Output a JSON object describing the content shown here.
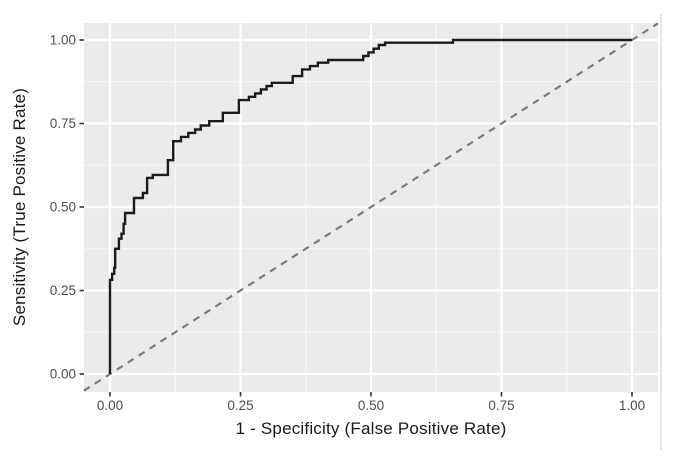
{
  "figure": {
    "background": "#ffffff",
    "panel_background": "#ebebeb",
    "grid_major_color": "#ffffff",
    "grid_minor_color": "#ffffff",
    "tick_mark_color": "#333333",
    "tick_label_color": "#4d4d4d",
    "axis_title_color": "#1a1a1a"
  },
  "chart_data": {
    "type": "line",
    "subtype": "roc-step-curve",
    "title": "",
    "xlabel": "1 - Specificity (False Positive Rate)",
    "ylabel": "Sensitivity (True Positive Rate)",
    "xlim": [
      -0.05,
      1.05
    ],
    "ylim": [
      -0.05,
      1.05
    ],
    "x_ticks": [
      0,
      0.25,
      0.5,
      0.75,
      1
    ],
    "x_tick_labels": [
      "0.00",
      "0.25",
      "0.50",
      "0.75",
      "1.00"
    ],
    "y_ticks": [
      0,
      0.25,
      0.5,
      0.75,
      1
    ],
    "y_tick_labels": [
      "0.00",
      "0.25",
      "0.50",
      "0.75",
      "1.00"
    ],
    "x_minor_ticks": [
      0.125,
      0.375,
      0.625,
      0.875
    ],
    "y_minor_ticks": [
      0.125,
      0.375,
      0.625,
      0.875
    ],
    "grid": {
      "major": true,
      "minor": true
    },
    "legend": "none",
    "series": [
      {
        "name": "ROC curve",
        "kind": "step-line",
        "color": "#1c1c1c",
        "stroke_width": 2.4,
        "dash": "solid",
        "points": [
          [
            0.0,
            0.0
          ],
          [
            0.0,
            0.282
          ],
          [
            0.004,
            0.282
          ],
          [
            0.004,
            0.3
          ],
          [
            0.008,
            0.3
          ],
          [
            0.008,
            0.318
          ],
          [
            0.01,
            0.318
          ],
          [
            0.01,
            0.375
          ],
          [
            0.017,
            0.375
          ],
          [
            0.017,
            0.405
          ],
          [
            0.022,
            0.405
          ],
          [
            0.022,
            0.42
          ],
          [
            0.026,
            0.42
          ],
          [
            0.026,
            0.45
          ],
          [
            0.029,
            0.45
          ],
          [
            0.029,
            0.482
          ],
          [
            0.046,
            0.482
          ],
          [
            0.046,
            0.527
          ],
          [
            0.063,
            0.527
          ],
          [
            0.063,
            0.542
          ],
          [
            0.071,
            0.542
          ],
          [
            0.071,
            0.587
          ],
          [
            0.082,
            0.587
          ],
          [
            0.082,
            0.596
          ],
          [
            0.111,
            0.596
          ],
          [
            0.111,
            0.64
          ],
          [
            0.121,
            0.64
          ],
          [
            0.121,
            0.697
          ],
          [
            0.136,
            0.697
          ],
          [
            0.136,
            0.71
          ],
          [
            0.15,
            0.71
          ],
          [
            0.15,
            0.722
          ],
          [
            0.163,
            0.722
          ],
          [
            0.163,
            0.732
          ],
          [
            0.174,
            0.732
          ],
          [
            0.174,
            0.744
          ],
          [
            0.19,
            0.744
          ],
          [
            0.19,
            0.757
          ],
          [
            0.216,
            0.757
          ],
          [
            0.216,
            0.782
          ],
          [
            0.247,
            0.782
          ],
          [
            0.247,
            0.82
          ],
          [
            0.266,
            0.82
          ],
          [
            0.266,
            0.83
          ],
          [
            0.278,
            0.83
          ],
          [
            0.278,
            0.84
          ],
          [
            0.289,
            0.84
          ],
          [
            0.289,
            0.852
          ],
          [
            0.3,
            0.852
          ],
          [
            0.3,
            0.862
          ],
          [
            0.31,
            0.862
          ],
          [
            0.31,
            0.872
          ],
          [
            0.35,
            0.872
          ],
          [
            0.35,
            0.892
          ],
          [
            0.368,
            0.892
          ],
          [
            0.368,
            0.912
          ],
          [
            0.383,
            0.912
          ],
          [
            0.383,
            0.922
          ],
          [
            0.398,
            0.922
          ],
          [
            0.398,
            0.932
          ],
          [
            0.418,
            0.932
          ],
          [
            0.418,
            0.94
          ],
          [
            0.485,
            0.94
          ],
          [
            0.485,
            0.952
          ],
          [
            0.495,
            0.952
          ],
          [
            0.495,
            0.963
          ],
          [
            0.505,
            0.963
          ],
          [
            0.505,
            0.974
          ],
          [
            0.515,
            0.974
          ],
          [
            0.515,
            0.985
          ],
          [
            0.527,
            0.985
          ],
          [
            0.527,
            0.992
          ],
          [
            0.657,
            0.992
          ],
          [
            0.657,
            1.0
          ],
          [
            1.0,
            1.0
          ]
        ]
      },
      {
        "name": "chance reference line (y = x)",
        "kind": "reference-line",
        "color": "#7b7b7b",
        "stroke_width": 2.2,
        "dash": "dashed",
        "points": [
          [
            -0.05,
            -0.05
          ],
          [
            1.05,
            1.05
          ]
        ]
      }
    ]
  }
}
